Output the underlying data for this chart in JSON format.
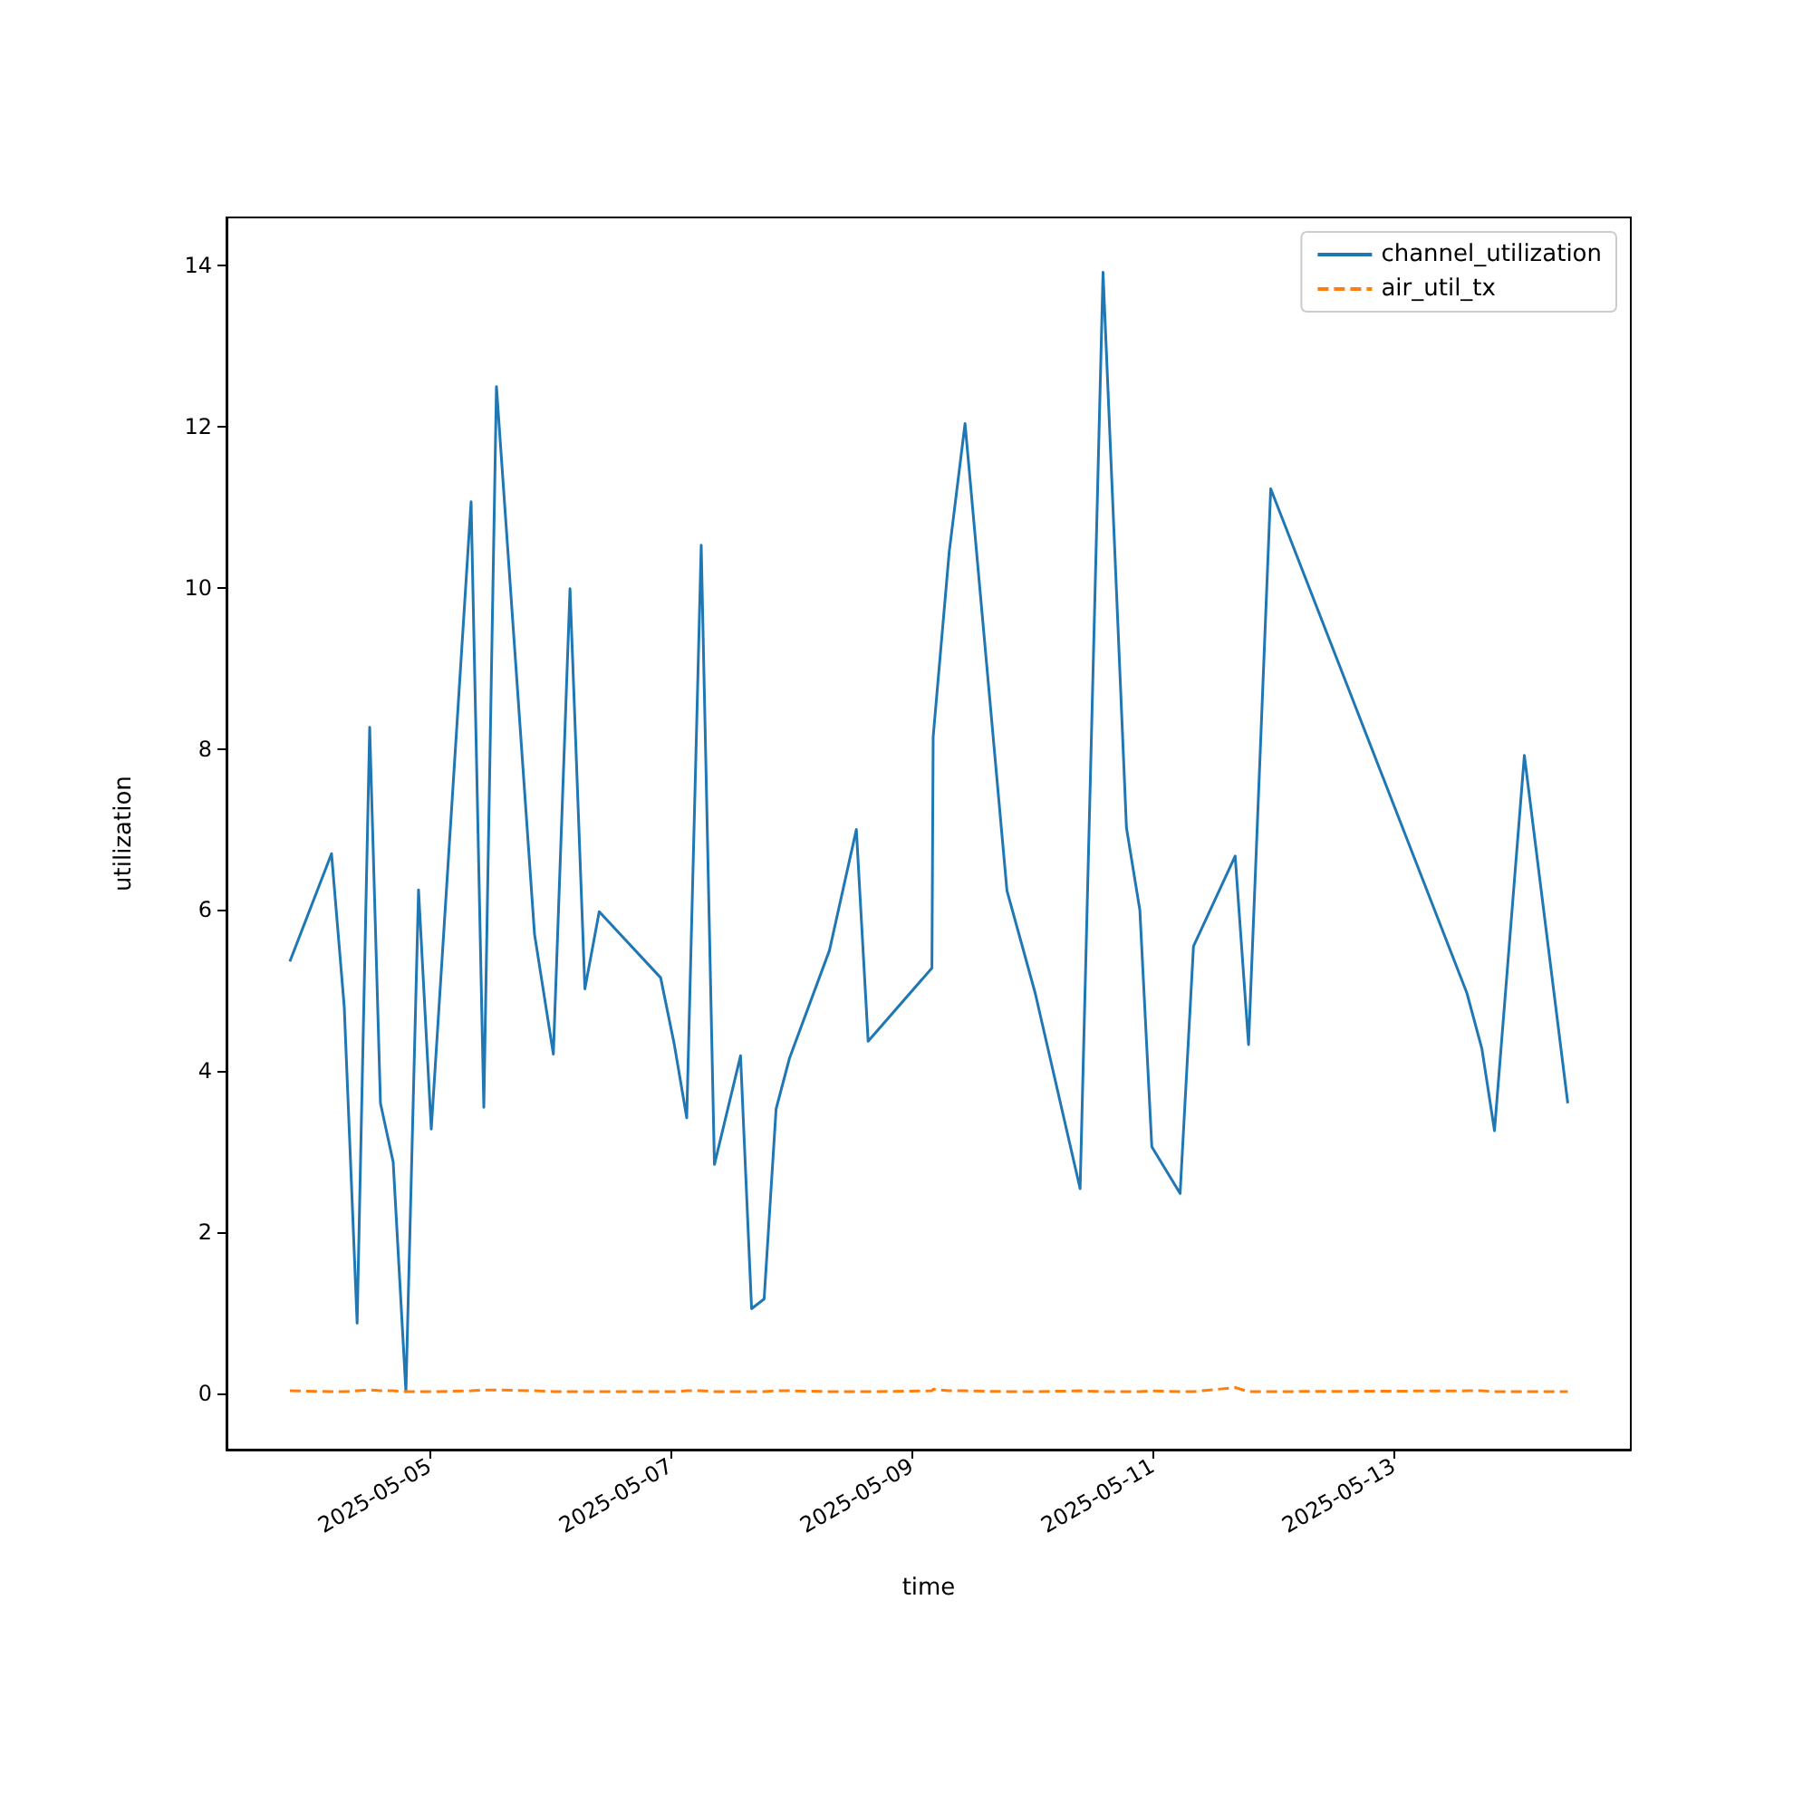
{
  "chart_data": {
    "type": "line",
    "xlabel": "time",
    "ylabel": "utilization",
    "legend": "top right",
    "grid": false,
    "marker": "none",
    "x": [
      "2025-05-03T20:12",
      "2025-05-04T04:30",
      "2025-05-04T07:02",
      "2025-05-04T09:36",
      "2025-05-04T12:06",
      "2025-05-04T14:15",
      "2025-05-04T16:47",
      "2025-05-04T19:19",
      "2025-05-04T21:50",
      "2025-05-05T00:22",
      "2025-05-05T08:18",
      "2025-05-05T10:50",
      "2025-05-05T13:21",
      "2025-05-05T20:56",
      "2025-05-06T00:41",
      "2025-05-06T04:00",
      "2025-05-06T06:58",
      "2025-05-06T09:49",
      "2025-05-06T22:03",
      "2025-05-07T00:43",
      "2025-05-07T03:15",
      "2025-05-07T06:08",
      "2025-05-07T08:46",
      "2025-05-07T13:58",
      "2025-05-07T16:10",
      "2025-05-07T18:40",
      "2025-05-07T21:03",
      "2025-05-07T23:43",
      "2025-05-08T07:41",
      "2025-05-08T13:02",
      "2025-05-08T15:23",
      "2025-05-09T04:05",
      "2025-05-09T04:20",
      "2025-05-09T07:32",
      "2025-05-09T10:41",
      "2025-05-09T19:02",
      "2025-05-10T00:39",
      "2025-05-10T09:36",
      "2025-05-10T14:10",
      "2025-05-10T18:50",
      "2025-05-10T21:30",
      "2025-05-10T23:53",
      "2025-05-11T05:31",
      "2025-05-11T08:11",
      "2025-05-11T16:29",
      "2025-05-11T19:09",
      "2025-05-11T23:34",
      "2025-05-13T14:38",
      "2025-05-13T17:37",
      "2025-05-13T20:08",
      "2025-05-14T02:05",
      "2025-05-14T10:44"
    ],
    "series": [
      {
        "name": "channel_utilization",
        "color": "#1f77b4",
        "line_style": "solid",
        "values": [
          5.36,
          6.7,
          4.8,
          0.87,
          8.27,
          3.6,
          2.87,
          0.02,
          6.25,
          3.28,
          11.07,
          3.55,
          12.5,
          5.7,
          4.21,
          9.99,
          5.02,
          5.98,
          5.16,
          4.35,
          3.42,
          10.53,
          2.84,
          4.19,
          1.05,
          1.17,
          3.53,
          4.16,
          5.5,
          7.0,
          4.37,
          5.28,
          8.15,
          10.45,
          12.04,
          6.24,
          4.97,
          2.54,
          13.92,
          7.02,
          6.0,
          3.06,
          2.48,
          5.55,
          6.67,
          4.33,
          11.23,
          4.97,
          4.28,
          3.26,
          7.92,
          3.6
        ]
      },
      {
        "name": "air_util_tx",
        "color": "#ff7f0e",
        "line_style": "dashed",
        "values": [
          0.03,
          0.02,
          0.02,
          0.03,
          0.04,
          0.03,
          0.03,
          0.02,
          0.02,
          0.02,
          0.03,
          0.04,
          0.04,
          0.03,
          0.02,
          0.02,
          0.02,
          0.02,
          0.02,
          0.02,
          0.03,
          0.03,
          0.02,
          0.02,
          0.02,
          0.02,
          0.03,
          0.03,
          0.02,
          0.02,
          0.02,
          0.03,
          0.05,
          0.03,
          0.03,
          0.02,
          0.02,
          0.03,
          0.02,
          0.02,
          0.02,
          0.03,
          0.02,
          0.02,
          0.07,
          0.02,
          0.02,
          0.03,
          0.03,
          0.02,
          0.02,
          0.02
        ]
      }
    ],
    "xlim": [
      "2025-05-03T07:35",
      "2025-05-14T23:17"
    ],
    "xticks": [
      {
        "value": "2025-05-05",
        "label": "2025-05-05"
      },
      {
        "value": "2025-05-07",
        "label": "2025-05-07"
      },
      {
        "value": "2025-05-09",
        "label": "2025-05-09"
      },
      {
        "value": "2025-05-11",
        "label": "2025-05-11"
      },
      {
        "value": "2025-05-13",
        "label": "2025-05-13"
      }
    ],
    "ylim": [
      -0.7,
      14.6
    ],
    "yticks": [
      0,
      2,
      4,
      6,
      8,
      10,
      12,
      14
    ]
  }
}
